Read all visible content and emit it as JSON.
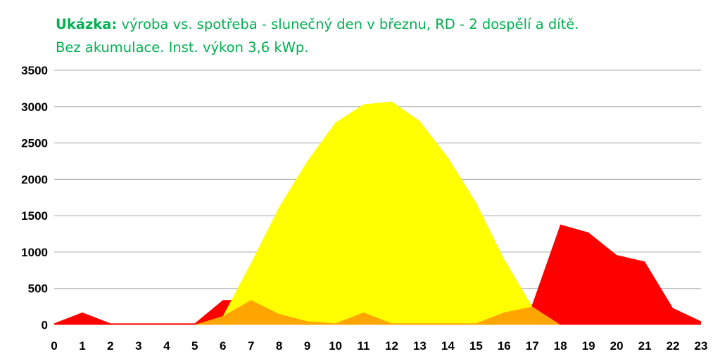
{
  "title": {
    "lead": "Ukázka:",
    "line1": " výroba vs. spotřeba  - slunečný den v březnu, RD - 2 dospělí a dítě.",
    "line2": "Bez akumulace. Inst. výkon 3,6 kWp."
  },
  "colors": {
    "title": "#00b050",
    "production": "#ffff00",
    "consumption": "#ff0000",
    "overlap": "#ffa500",
    "grid": "#a6a6a6"
  },
  "chart_data": {
    "type": "area",
    "title": "Ukázka: výroba vs. spotřeba  - slunečný den v březnu, RD - 2 dospělí a dítě. Bez akumulace. Inst. výkon 3,6 kWp.",
    "xlabel": "",
    "ylabel": "",
    "x": [
      0,
      1,
      2,
      3,
      4,
      5,
      6,
      7,
      8,
      9,
      10,
      11,
      12,
      13,
      14,
      15,
      16,
      17,
      18,
      19,
      20,
      21,
      22,
      23
    ],
    "x_ticks": [
      "0",
      "1",
      "2",
      "3",
      "4",
      "5",
      "6",
      "7",
      "8",
      "9",
      "10",
      "11",
      "12",
      "13",
      "14",
      "15",
      "16",
      "17",
      "18",
      "19",
      "20",
      "21",
      "22",
      "23"
    ],
    "ylim": [
      0,
      3500
    ],
    "y_ticks": [
      "0",
      "500",
      "1000",
      "1500",
      "2000",
      "2500",
      "3000",
      "3500"
    ],
    "grid": true,
    "legend": "none",
    "series": [
      {
        "values": [
          0,
          0,
          0,
          0,
          0,
          0,
          120,
          850,
          1620,
          2250,
          2780,
          3030,
          3070,
          2800,
          2300,
          1680,
          900,
          250,
          0,
          0,
          0,
          0,
          0,
          0
        ]
      },
      {
        "values": [
          20,
          170,
          20,
          20,
          20,
          20,
          340,
          340,
          150,
          50,
          20,
          170,
          20,
          20,
          20,
          20,
          170,
          280,
          1380,
          1270,
          960,
          870,
          230,
          50
        ]
      }
    ]
  }
}
